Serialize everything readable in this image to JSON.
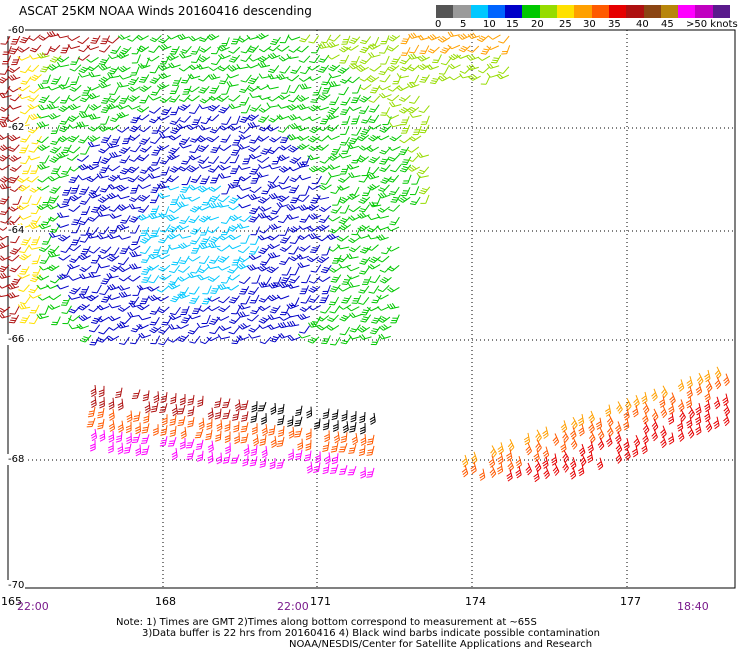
{
  "title": "ASCAT 25KM NOAA Winds 20160416 descending",
  "colorbar": {
    "colors": [
      "#555555",
      "#9a9a9a",
      "#00c8ff",
      "#0064ff",
      "#0000c8",
      "#00c800",
      "#96dc00",
      "#ffe100",
      "#ffa000",
      "#ff5a00",
      "#e60000",
      "#ae1010",
      "#8b4513",
      "#b8860b",
      "#ff00ff",
      "#c000c0",
      "#5a1a8c"
    ],
    "labels": [
      "0",
      "5",
      "10",
      "15",
      "20",
      "25",
      "30",
      "35",
      "40",
      "45",
      ">50 knots"
    ]
  },
  "lat_labels": [
    "-60",
    "-62",
    "-64",
    "-66",
    "-68",
    "-70"
  ],
  "lon_labels": [
    "165",
    "168",
    "171",
    "174",
    "177"
  ],
  "time_labels": [
    "22:00",
    "22:00",
    "18:40"
  ],
  "notes": [
    "Note: 1) Times are GMT 2)Times along bottom correspond to measurement at ~65S",
    "3)Data buffer is 22 hrs from 20160416 4) Black wind barbs indicate possible contamination",
    "NOAA/NESDIS/Center for Satellite Applications and Research"
  ]
}
